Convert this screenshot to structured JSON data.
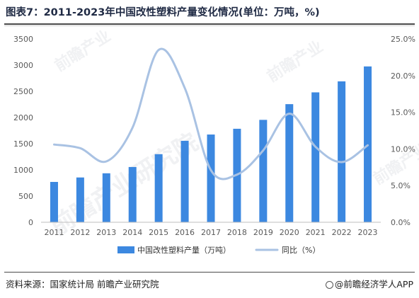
{
  "header": {
    "title": "图表7：2011-2023年中国改性塑料产量变化情况(单位：万吨，%)"
  },
  "footer": {
    "source": "资料来源：国家统计局 前瞻产业研究院",
    "brand": "@前瞻经济学人APP"
  },
  "watermarks": [
    "前瞻产业研究院",
    "前瞻产业",
    "前瞻产业",
    "前瞻产业"
  ],
  "colors": {
    "bar": "#3c88e0",
    "line": "#a9c2e3",
    "axis_text": "#595959",
    "grid": "#d9d9d9"
  },
  "chart_data": {
    "type": "bar",
    "categories": [
      "2011",
      "2012",
      "2013",
      "2014",
      "2015",
      "2016",
      "2017",
      "2018",
      "2019",
      "2020",
      "2021",
      "2022",
      "2023"
    ],
    "series": [
      {
        "name": "中国改性塑料产量（万吨）",
        "type": "bar",
        "axis": "left",
        "values": [
          770,
          855,
          935,
          1055,
          1300,
          1555,
          1675,
          1785,
          1955,
          2255,
          2480,
          2690,
          2975
        ]
      },
      {
        "name": "同比（%）",
        "type": "line",
        "axis": "right",
        "values": [
          10.6,
          10.1,
          8.3,
          12.9,
          23.5,
          18.3,
          7.1,
          6.5,
          9.8,
          14.8,
          10.3,
          8.2,
          10.5
        ]
      }
    ],
    "y_left": {
      "ylim": [
        0,
        3500
      ],
      "ticks": [
        "0",
        "500",
        "1000",
        "1500",
        "2000",
        "2500",
        "3000",
        "3500"
      ]
    },
    "y_right": {
      "ylim": [
        0,
        25
      ],
      "ticks": [
        "0.0%",
        "5.0%",
        "10.0%",
        "15.0%",
        "20.0%",
        "25.0%"
      ]
    },
    "grid": false,
    "legend": "bottom"
  }
}
